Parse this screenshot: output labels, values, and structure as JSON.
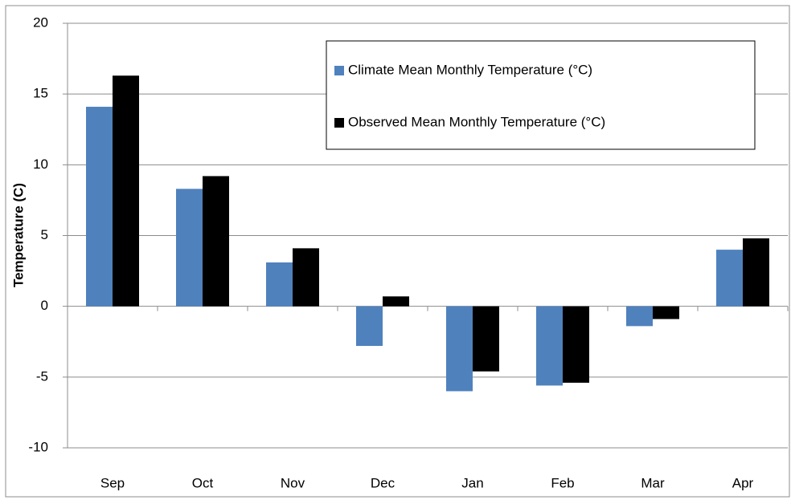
{
  "chart_data": {
    "type": "bar",
    "y_label": "Temperature (C)",
    "categories": [
      "Sep",
      "Oct",
      "Nov",
      "Dec",
      "Jan",
      "Feb",
      "Mar",
      "Apr"
    ],
    "series": [
      {
        "name": "Climate Mean Monthly Temperature (°C)",
        "color": "#4f81bd",
        "values": [
          14.1,
          8.3,
          3.1,
          -2.8,
          -6.0,
          -5.6,
          -1.4,
          4.0
        ]
      },
      {
        "name": "Observed Mean Monthly Temperature (°C)",
        "color": "#000000",
        "values": [
          16.3,
          9.2,
          4.1,
          0.7,
          -4.6,
          -5.4,
          -0.9,
          4.8
        ]
      }
    ],
    "ylim": [
      -10,
      20
    ],
    "yticks": [
      -10,
      -5,
      0,
      5,
      10,
      15,
      20
    ],
    "grid": true,
    "legend": "top-right"
  }
}
